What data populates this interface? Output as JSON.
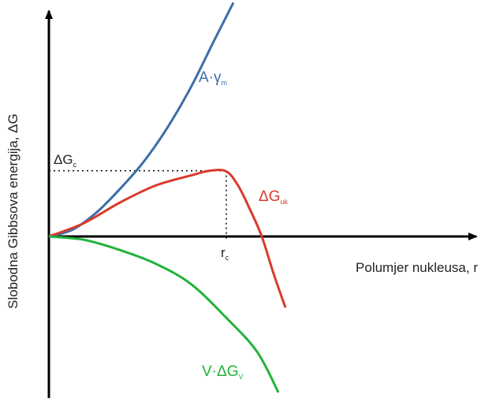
{
  "chart_data": {
    "type": "line",
    "title": "",
    "xlabel": "Polumjer nukleusa, r",
    "ylabel": "Slobodna Gibbsova energija, ΔG",
    "grid": false,
    "legend": "none",
    "annotations": {
      "critical_energy": {
        "symbol": "ΔG",
        "sub": "c"
      },
      "critical_radius": {
        "symbol": "r",
        "sub": "c"
      }
    },
    "series": [
      {
        "name": "A·γ",
        "sub": "m",
        "color": "#3d6ea8",
        "points": [
          [
            0,
            0
          ],
          [
            0.1,
            0.1
          ],
          [
            0.2,
            0.35
          ],
          [
            0.3,
            0.7
          ],
          [
            0.4,
            1.1
          ],
          [
            0.5,
            1.6
          ],
          [
            0.6,
            2.2
          ],
          [
            0.7,
            2.9
          ],
          [
            0.78,
            3.45
          ]
        ]
      },
      {
        "name": "ΔG",
        "sub": "uk",
        "color": "#d93a2b",
        "points": [
          [
            0,
            0
          ],
          [
            0.15,
            0.2
          ],
          [
            0.3,
            0.5
          ],
          [
            0.45,
            0.75
          ],
          [
            0.6,
            0.9
          ],
          [
            0.68,
            0.97
          ],
          [
            0.75,
            0.96
          ],
          [
            0.8,
            0.75
          ],
          [
            0.85,
            0.4
          ],
          [
            0.9,
            0
          ],
          [
            0.95,
            -0.55
          ],
          [
            1.0,
            -1.05
          ]
        ]
      },
      {
        "name": "V·ΔG",
        "sub": "V",
        "color": "#22b33a",
        "points": [
          [
            0,
            0
          ],
          [
            0.15,
            -0.05
          ],
          [
            0.3,
            -0.2
          ],
          [
            0.45,
            -0.4
          ],
          [
            0.6,
            -0.7
          ],
          [
            0.75,
            -1.2
          ],
          [
            0.88,
            -1.7
          ],
          [
            0.97,
            -2.3
          ]
        ]
      }
    ],
    "critical": {
      "x": 0.75,
      "y": 0.97
    },
    "xlim": [
      0,
      1.85
    ],
    "ylim": [
      -2.4,
      3.5
    ]
  }
}
